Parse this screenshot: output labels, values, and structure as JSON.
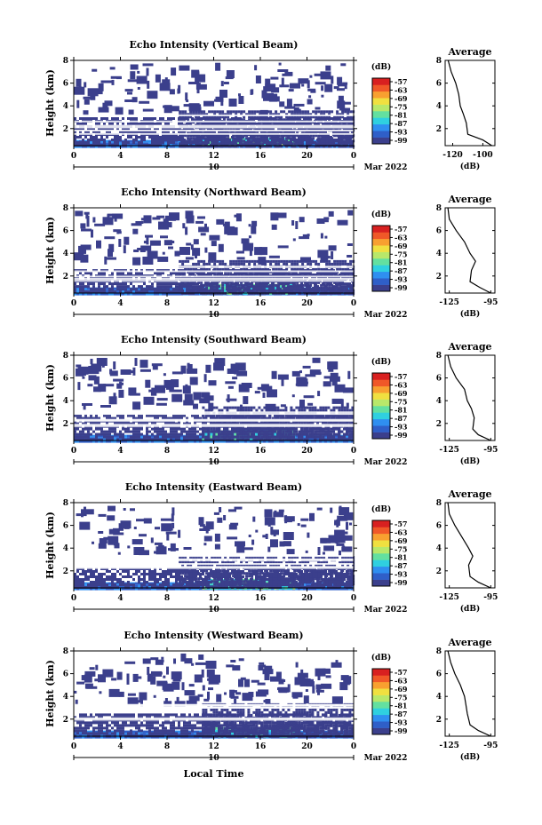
{
  "figure": {
    "date_label": "Mar 2022",
    "x_axis_label": "Local Time",
    "day_label": "10",
    "colorbar_unit": "(dB)",
    "colorbar_ticks": [
      "-57",
      "-63",
      "-69",
      "-75",
      "-81",
      "-87",
      "-93",
      "-99"
    ],
    "colormap": [
      "#3b3f8c",
      "#2f5fc8",
      "#2f8ff0",
      "#2fd0e0",
      "#63e0a0",
      "#b8e86a",
      "#f0e040",
      "#f8a030",
      "#f05828",
      "#d82020"
    ]
  },
  "chart_data": [
    {
      "type": "heatmap",
      "title": "Echo Intensity (Vertical Beam)",
      "xlabel": "",
      "ylabel": "Height (km)",
      "xticks": [
        "0",
        "4",
        "8",
        "12",
        "16",
        "20",
        "0"
      ],
      "yticks": [
        "2",
        "4",
        "6",
        "8"
      ],
      "ylim": [
        0.5,
        8
      ],
      "xlim": [
        0,
        24
      ],
      "color_scale_db": [
        -99,
        -57
      ],
      "echo_regions": [
        {
          "from_hour": 0,
          "to_hour": 24,
          "top_km": 1.0,
          "intensity_db": -93
        },
        {
          "from_hour": 11,
          "to_hour": 19,
          "top_km": 1.2,
          "intensity_db": -87
        },
        {
          "from_hour": 0,
          "to_hour": 24,
          "top_km": 3.0,
          "intensity_db": -99
        },
        {
          "from_hour": 9,
          "to_hour": 24,
          "top_km": 3.6,
          "intensity_db": -99
        }
      ],
      "average_panel": {
        "title": "Average",
        "xlabel": "(dB)",
        "xticks": [
          "-120",
          "-100"
        ],
        "yticks": [
          "2",
          "4",
          "6",
          "8"
        ],
        "xlim": [
          -125,
          -92
        ],
        "profile": [
          {
            "db": -94,
            "height_km": 0.5
          },
          {
            "db": -100,
            "height_km": 1.0
          },
          {
            "db": -110,
            "height_km": 1.5
          },
          {
            "db": -111,
            "height_km": 2.5
          },
          {
            "db": -113,
            "height_km": 3.3
          },
          {
            "db": -115,
            "height_km": 4.0
          },
          {
            "db": -116,
            "height_km": 5.0
          },
          {
            "db": -118,
            "height_km": 6.0
          },
          {
            "db": -121,
            "height_km": 7.0
          },
          {
            "db": -123,
            "height_km": 8.0
          }
        ]
      }
    },
    {
      "type": "heatmap",
      "title": "Echo Intensity (Northward Beam)",
      "xlabel": "",
      "ylabel": "Height (km)",
      "xticks": [
        "0",
        "4",
        "8",
        "12",
        "16",
        "20",
        "0"
      ],
      "yticks": [
        "2",
        "4",
        "6",
        "8"
      ],
      "ylim": [
        0.5,
        8
      ],
      "xlim": [
        0,
        24
      ],
      "color_scale_db": [
        -99,
        -57
      ],
      "echo_regions": [
        {
          "from_hour": 0,
          "to_hour": 24,
          "top_km": 1.0,
          "intensity_db": -93
        },
        {
          "from_hour": 11,
          "to_hour": 19,
          "top_km": 1.3,
          "intensity_db": -87
        },
        {
          "from_hour": 0,
          "to_hour": 24,
          "top_km": 2.6,
          "intensity_db": -99
        },
        {
          "from_hour": 9,
          "to_hour": 24,
          "top_km": 3.4,
          "intensity_db": -99
        }
      ],
      "average_panel": {
        "title": "Average",
        "xlabel": "(dB)",
        "xticks": [
          "-125",
          "-95"
        ],
        "yticks": [
          "2",
          "4",
          "6",
          "8"
        ],
        "xlim": [
          -128,
          -92
        ],
        "profile": [
          {
            "db": -95,
            "height_km": 0.5
          },
          {
            "db": -103,
            "height_km": 1.0
          },
          {
            "db": -110,
            "height_km": 1.5
          },
          {
            "db": -109,
            "height_km": 2.5
          },
          {
            "db": -106,
            "height_km": 3.3
          },
          {
            "db": -110,
            "height_km": 4.0
          },
          {
            "db": -114,
            "height_km": 5.0
          },
          {
            "db": -120,
            "height_km": 6.0
          },
          {
            "db": -125,
            "height_km": 7.0
          },
          {
            "db": -126,
            "height_km": 8.0
          }
        ]
      }
    },
    {
      "type": "heatmap",
      "title": "Echo Intensity (Southward Beam)",
      "xlabel": "",
      "ylabel": "Height (km)",
      "xticks": [
        "0",
        "4",
        "8",
        "12",
        "16",
        "20",
        "0"
      ],
      "yticks": [
        "2",
        "4",
        "6",
        "8"
      ],
      "ylim": [
        0.5,
        8
      ],
      "xlim": [
        0,
        24
      ],
      "color_scale_db": [
        -99,
        -57
      ],
      "echo_regions": [
        {
          "from_hour": 0,
          "to_hour": 24,
          "top_km": 1.0,
          "intensity_db": -93
        },
        {
          "from_hour": 11,
          "to_hour": 19,
          "top_km": 1.4,
          "intensity_db": -87
        },
        {
          "from_hour": 0,
          "to_hour": 24,
          "top_km": 2.8,
          "intensity_db": -99
        },
        {
          "from_hour": 11,
          "to_hour": 24,
          "top_km": 3.5,
          "intensity_db": -99
        }
      ],
      "average_panel": {
        "title": "Average",
        "xlabel": "(dB)",
        "xticks": [
          "-125",
          "-95"
        ],
        "yticks": [
          "2",
          "4",
          "6",
          "8"
        ],
        "xlim": [
          -128,
          -92
        ],
        "profile": [
          {
            "db": -95,
            "height_km": 0.5
          },
          {
            "db": -104,
            "height_km": 1.0
          },
          {
            "db": -108,
            "height_km": 1.5
          },
          {
            "db": -107,
            "height_km": 2.5
          },
          {
            "db": -109,
            "height_km": 3.3
          },
          {
            "db": -112,
            "height_km": 4.0
          },
          {
            "db": -114,
            "height_km": 5.0
          },
          {
            "db": -120,
            "height_km": 6.0
          },
          {
            "db": -124,
            "height_km": 7.0
          },
          {
            "db": -126,
            "height_km": 8.0
          }
        ]
      }
    },
    {
      "type": "heatmap",
      "title": "Echo Intensity (Eastward Beam)",
      "xlabel": "",
      "ylabel": "Height (km)",
      "xticks": [
        "0",
        "4",
        "8",
        "12",
        "16",
        "20",
        "0"
      ],
      "yticks": [
        "2",
        "4",
        "6",
        "8"
      ],
      "ylim": [
        0.5,
        8
      ],
      "xlim": [
        0,
        24
      ],
      "color_scale_db": [
        -99,
        -57
      ],
      "echo_regions": [
        {
          "from_hour": 0,
          "to_hour": 24,
          "top_km": 1.0,
          "intensity_db": -93
        },
        {
          "from_hour": 11,
          "to_hour": 19,
          "top_km": 1.3,
          "intensity_db": -87
        },
        {
          "from_hour": 0,
          "to_hour": 24,
          "top_km": 2.3,
          "intensity_db": -99
        },
        {
          "from_hour": 9,
          "to_hour": 24,
          "top_km": 3.3,
          "intensity_db": -99
        }
      ],
      "average_panel": {
        "title": "Average",
        "xlabel": "(dB)",
        "xticks": [
          "-125",
          "-95"
        ],
        "yticks": [
          "2",
          "4",
          "6",
          "8"
        ],
        "xlim": [
          -128,
          -92
        ],
        "profile": [
          {
            "db": -95,
            "height_km": 0.5
          },
          {
            "db": -104,
            "height_km": 1.0
          },
          {
            "db": -110,
            "height_km": 1.5
          },
          {
            "db": -111,
            "height_km": 2.5
          },
          {
            "db": -108,
            "height_km": 3.3
          },
          {
            "db": -111,
            "height_km": 4.0
          },
          {
            "db": -116,
            "height_km": 5.0
          },
          {
            "db": -121,
            "height_km": 6.0
          },
          {
            "db": -125,
            "height_km": 7.0
          },
          {
            "db": -126,
            "height_km": 8.0
          }
        ]
      }
    },
    {
      "type": "heatmap",
      "title": "Echo Intensity (Westward Beam)",
      "xlabel": "Local Time",
      "ylabel": "Height (km)",
      "xticks": [
        "0",
        "4",
        "8",
        "12",
        "16",
        "20",
        "0"
      ],
      "yticks": [
        "2",
        "4",
        "6",
        "8"
      ],
      "ylim": [
        0.5,
        8
      ],
      "xlim": [
        0,
        24
      ],
      "color_scale_db": [
        -99,
        -57
      ],
      "echo_regions": [
        {
          "from_hour": 0,
          "to_hour": 24,
          "top_km": 1.0,
          "intensity_db": -93
        },
        {
          "from_hour": 11,
          "to_hour": 19,
          "top_km": 1.3,
          "intensity_db": -87
        },
        {
          "from_hour": 0,
          "to_hour": 24,
          "top_km": 2.5,
          "intensity_db": -99
        },
        {
          "from_hour": 11,
          "to_hour": 24,
          "top_km": 3.4,
          "intensity_db": -99
        }
      ],
      "average_panel": {
        "title": "Average",
        "xlabel": "(dB)",
        "xticks": [
          "-125",
          "-95"
        ],
        "yticks": [
          "2",
          "4",
          "6",
          "8"
        ],
        "xlim": [
          -128,
          -92
        ],
        "profile": [
          {
            "db": -95,
            "height_km": 0.5
          },
          {
            "db": -104,
            "height_km": 1.0
          },
          {
            "db": -110,
            "height_km": 1.5
          },
          {
            "db": -112,
            "height_km": 2.5
          },
          {
            "db": -113,
            "height_km": 3.3
          },
          {
            "db": -114,
            "height_km": 4.0
          },
          {
            "db": -117,
            "height_km": 5.0
          },
          {
            "db": -121,
            "height_km": 6.0
          },
          {
            "db": -124,
            "height_km": 7.0
          },
          {
            "db": -126,
            "height_km": 8.0
          }
        ]
      }
    }
  ]
}
